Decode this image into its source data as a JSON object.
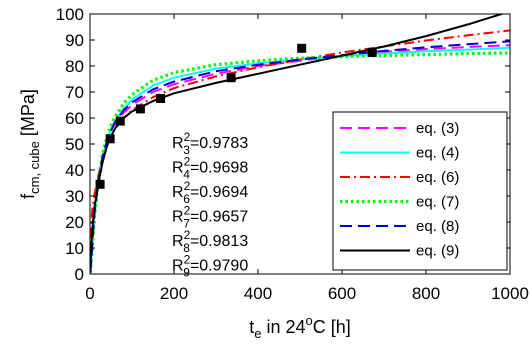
{
  "chart_data": {
    "type": "line",
    "xlabel": {
      "main": "t",
      "sub": "e",
      "rest": " in 24",
      "sup": "o",
      "tail": "C [h]"
    },
    "ylabel": {
      "main": "f",
      "sub": "cm, cube",
      "rest": " [MPa]"
    },
    "xlim": [
      0,
      1000
    ],
    "ylim": [
      0,
      100
    ],
    "xticks": [
      0,
      200,
      400,
      600,
      800,
      1000
    ],
    "yticks": [
      0,
      10,
      20,
      30,
      40,
      50,
      60,
      70,
      80,
      90,
      100
    ],
    "grid": false,
    "legend_position": "lower-right",
    "measured": {
      "marker": "square",
      "x": [
        24,
        48,
        72,
        120,
        168,
        336,
        504,
        672
      ],
      "y": [
        34.5,
        52.0,
        58.8,
        63.5,
        67.5,
        75.5,
        86.8,
        85.2
      ]
    },
    "series": [
      {
        "name": "eq. (3)",
        "color": "#ff00ff",
        "dash": "long-dash",
        "x": [
          1,
          5,
          10,
          20,
          30,
          40,
          50,
          60,
          80,
          100,
          150,
          200,
          300,
          400,
          500,
          600,
          700,
          800,
          900,
          1000
        ],
        "y": [
          1,
          12,
          24,
          37,
          45,
          51,
          55,
          58,
          62,
          65,
          70,
          73,
          77,
          80,
          82,
          84,
          85.5,
          86.5,
          87.3,
          88
        ]
      },
      {
        "name": "eq. (4)",
        "color": "#00ffff",
        "dash": "solid",
        "x": [
          1,
          5,
          10,
          20,
          30,
          40,
          50,
          60,
          80,
          100,
          150,
          200,
          300,
          400,
          500,
          600,
          700,
          800,
          900,
          1000
        ],
        "y": [
          0.5,
          10,
          22,
          36,
          45,
          51,
          56,
          59,
          63.5,
          67,
          72.5,
          75.5,
          79,
          81,
          82.5,
          83.8,
          84.8,
          85.7,
          86.3,
          87
        ]
      },
      {
        "name": "eq. (6)",
        "color": "#ff0000",
        "dash": "dash-dot",
        "x": [
          1,
          5,
          10,
          20,
          30,
          40,
          50,
          60,
          80,
          100,
          150,
          200,
          300,
          400,
          500,
          600,
          700,
          800,
          900,
          1000
        ],
        "y": [
          14,
          24,
          30,
          38,
          44,
          49,
          53,
          56,
          60,
          63,
          68,
          71.5,
          76,
          79.5,
          82.5,
          85.2,
          87.5,
          89.8,
          91.8,
          93.7
        ]
      },
      {
        "name": "eq. (7)",
        "color": "#00ff00",
        "dash": "dotted",
        "x": [
          1,
          5,
          10,
          20,
          30,
          40,
          50,
          60,
          80,
          100,
          150,
          200,
          300,
          400,
          500,
          600,
          700,
          800,
          900,
          1000
        ],
        "y": [
          0.5,
          9,
          21,
          36,
          46,
          52.5,
          57,
          60.5,
          65.5,
          69,
          74.5,
          77.5,
          80.5,
          82,
          83,
          83.6,
          84,
          84.4,
          84.8,
          85
        ]
      },
      {
        "name": "eq. (8)",
        "color": "#0000cc",
        "dash": "long-dash",
        "x": [
          1,
          5,
          10,
          20,
          30,
          40,
          50,
          60,
          80,
          100,
          150,
          200,
          300,
          400,
          500,
          600,
          700,
          800,
          900,
          1000
        ],
        "y": [
          0.5,
          10,
          22,
          36,
          45,
          51,
          55,
          58.5,
          63,
          66,
          71,
          74,
          78,
          80.5,
          82.5,
          84.2,
          85.8,
          87.2,
          88.4,
          89.5
        ]
      },
      {
        "name": "eq. (9)",
        "color": "#000000",
        "dash": "solid",
        "x": [
          1,
          5,
          10,
          20,
          30,
          40,
          50,
          60,
          80,
          100,
          150,
          200,
          300,
          400,
          500,
          600,
          700,
          800,
          900,
          1000
        ],
        "y": [
          3,
          16,
          25,
          35,
          43,
          49,
          53,
          56,
          60,
          62.5,
          66.5,
          69.5,
          73.5,
          77,
          80.5,
          84,
          87.5,
          91.5,
          96,
          101
        ]
      }
    ],
    "annotations": [
      {
        "base": "R",
        "sub": "3",
        "sup": "2",
        "value": "=0.9783"
      },
      {
        "base": "R",
        "sub": "4",
        "sup": "2",
        "value": "=0.9698"
      },
      {
        "base": "R",
        "sub": "6",
        "sup": "2",
        "value": "=0.9694"
      },
      {
        "base": "R",
        "sub": "7",
        "sup": "2",
        "value": "=0.9657"
      },
      {
        "base": "R",
        "sub": "8",
        "sup": "2",
        "value": "=0.9813"
      },
      {
        "base": "R",
        "sub": "9",
        "sup": "2",
        "value": "=0.9790"
      }
    ]
  }
}
